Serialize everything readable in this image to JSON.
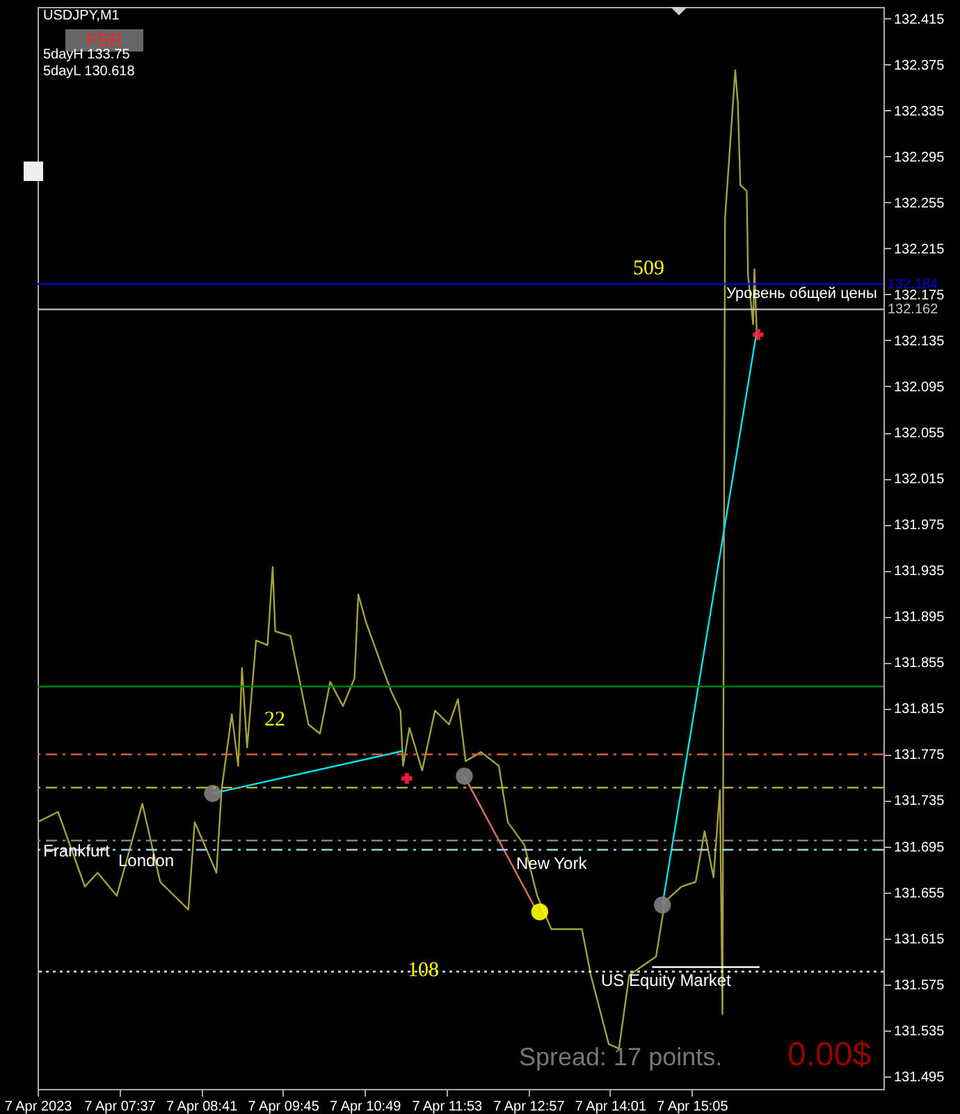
{
  "chart_data": {
    "type": "line",
    "title": "USDJPY,M1",
    "x": [
      "2023-04-07T06:33",
      "2023-04-07T06:49",
      "2023-04-07T07:10",
      "2023-04-07T07:20",
      "2023-04-07T07:35",
      "2023-04-07T07:55",
      "2023-04-07T08:09",
      "2023-04-07T08:31",
      "2023-04-07T08:36",
      "2023-04-07T08:53",
      "2023-04-07T08:57",
      "2023-04-07T09:05",
      "2023-04-07T09:10",
      "2023-04-07T09:13",
      "2023-04-07T09:17",
      "2023-04-07T09:24",
      "2023-04-07T09:33",
      "2023-04-07T09:37",
      "2023-04-07T09:39",
      "2023-04-07T09:51",
      "2023-04-07T10:05",
      "2023-04-07T10:14",
      "2023-04-07T10:22",
      "2023-04-07T10:32",
      "2023-04-07T10:41",
      "2023-04-07T10:44",
      "2023-04-07T10:50",
      "2023-04-07T11:03",
      "2023-04-07T11:10",
      "2023-04-07T11:17",
      "2023-04-07T11:19",
      "2023-04-07T11:24",
      "2023-04-07T11:34",
      "2023-04-07T11:44",
      "2023-04-07T11:55",
      "2023-04-07T12:02",
      "2023-04-07T12:08",
      "2023-04-07T12:20",
      "2023-04-07T12:34",
      "2023-04-07T12:41",
      "2023-04-07T12:54",
      "2023-04-07T13:04",
      "2023-04-07T13:15",
      "2023-04-07T13:39",
      "2023-04-07T13:46",
      "2023-04-07T14:00",
      "2023-04-07T14:08",
      "2023-04-07T14:16",
      "2023-04-07T14:37",
      "2023-04-07T14:44",
      "2023-04-07T14:57",
      "2023-04-07T15:08",
      "2023-04-07T15:15",
      "2023-04-07T15:22",
      "2023-04-07T15:27",
      "2023-04-07T15:29",
      "2023-04-07T15:31",
      "2023-04-07T15:39",
      "2023-04-07T15:41",
      "2023-04-07T15:43",
      "2023-04-07T15:48",
      "2023-04-07T15:49",
      "2023-04-07T15:53",
      "2023-04-07T15:54",
      "2023-04-07T15:56"
    ],
    "series": [
      {
        "color": "#a3a33a",
        "values": [
          131.716,
          131.725,
          131.66,
          131.672,
          131.652,
          131.732,
          131.664,
          131.64,
          131.716,
          131.672,
          131.744,
          131.81,
          131.765,
          131.85,
          131.781,
          131.874,
          131.87,
          131.938,
          131.882,
          131.878,
          131.801,
          131.793,
          131.838,
          131.817,
          131.841,
          131.914,
          131.89,
          131.85,
          131.829,
          131.813,
          131.765,
          131.798,
          131.761,
          131.813,
          131.801,
          131.823,
          131.769,
          131.777,
          131.765,
          131.716,
          131.696,
          131.652,
          131.623,
          131.623,
          131.583,
          131.523,
          131.519,
          131.583,
          131.599,
          131.647,
          131.66,
          131.664,
          131.708,
          131.668,
          131.744,
          131.549,
          132.241,
          132.37,
          132.342,
          132.27,
          132.265,
          132.192,
          132.149,
          132.197,
          132.137
        ]
      },
      {
        "type": "line",
        "color": "#00e5ee",
        "x": [
          "2023-04-07T08:50",
          "2023-04-07T11:19"
        ],
        "values": [
          131.741,
          131.778
        ]
      },
      {
        "type": "line",
        "color": "#00e5ee",
        "x": [
          "2023-04-07T14:42",
          "2023-04-07T15:56"
        ],
        "values": [
          131.644,
          132.144
        ]
      },
      {
        "type": "line",
        "color": "#e07060",
        "x": [
          "2023-04-07T12:07",
          "2023-04-07T13:04"
        ],
        "values": [
          131.756,
          131.638
        ]
      },
      {
        "type": "line",
        "color": "#ffffff",
        "x": [
          "2023-04-07T14:34",
          "2023-04-07T15:58"
        ],
        "values": [
          131.59,
          131.59
        ]
      },
      {
        "type": "scatter",
        "color": "#808080",
        "marker": "circle",
        "x": [
          "2023-04-07T08:50",
          "2023-04-07T12:07",
          "2023-04-07T14:42"
        ],
        "values": [
          131.741,
          131.756,
          131.644
        ]
      },
      {
        "type": "scatter",
        "color": "#ffff00",
        "marker": "circle",
        "x": [
          "2023-04-07T13:06"
        ],
        "values": [
          131.638
        ]
      },
      {
        "type": "scatter",
        "color": "#ff2040",
        "marker": "cross",
        "x": [
          "2023-04-07T11:22",
          "2023-04-07T15:57"
        ],
        "values": [
          131.754,
          132.14
        ]
      }
    ],
    "xlim": [
      "2023-04-07T06:33",
      "2023-04-07T17:35"
    ],
    "xticks": [
      {
        "value": "2023-04-07T06:33",
        "label": "7 Apr 2023"
      },
      {
        "value": "2023-04-07T07:37",
        "label": "7 Apr 07:37"
      },
      {
        "value": "2023-04-07T08:41",
        "label": "7 Apr 08:41"
      },
      {
        "value": "2023-04-07T09:45",
        "label": "7 Apr 09:45"
      },
      {
        "value": "2023-04-07T10:49",
        "label": "7 Apr 10:49"
      },
      {
        "value": "2023-04-07T11:53",
        "label": "7 Apr 11:53"
      },
      {
        "value": "2023-04-07T12:57",
        "label": "7 Apr 12:57"
      },
      {
        "value": "2023-04-07T14:01",
        "label": "7 Apr 14:01"
      },
      {
        "value": "2023-04-07T15:05",
        "label": "7 Apr 15:05"
      }
    ],
    "ylim": [
      131.484,
      132.425
    ],
    "yticks": [
      131.495,
      131.535,
      131.575,
      131.615,
      131.655,
      131.695,
      131.735,
      131.775,
      131.815,
      131.855,
      131.895,
      131.935,
      131.975,
      132.015,
      132.055,
      132.095,
      132.135,
      132.175,
      132.215,
      132.255,
      132.295,
      132.335,
      132.375,
      132.415
    ],
    "ref_lines": [
      {
        "axis": "y",
        "value": 132.184,
        "label": "132.184",
        "color": "#0000dd",
        "line_style": "solid"
      },
      {
        "axis": "y",
        "value": 132.162,
        "label": "132.162",
        "color": "#c0c0c0",
        "line_style": "solid"
      },
      {
        "axis": "y",
        "value": 131.834,
        "color": "#008000",
        "line_style": "solid"
      },
      {
        "axis": "y",
        "value": 131.775,
        "color": "#d0603a",
        "line_style": "dashed"
      },
      {
        "axis": "y",
        "value": 131.746,
        "color": "#b0b020",
        "line_style": "dashed"
      },
      {
        "axis": "y",
        "value": 131.7,
        "color": "#808080",
        "line_style": "dashed"
      },
      {
        "axis": "y",
        "value": 131.692,
        "color": "#a0d0e0",
        "line_style": "dashed"
      },
      {
        "axis": "y",
        "value": 131.586,
        "color": "#e0e0e0",
        "line_style": "dotted"
      }
    ],
    "annotations": [
      "FSR",
      "5dayH 133.75",
      "5dayL 130.618",
      "509",
      "22",
      "108",
      "Уровень общей цены",
      "Frankfurt",
      "London",
      "New York",
      "US Equity Market",
      "Spread: 17 points.",
      "0.00$"
    ],
    "grid": false
  }
}
